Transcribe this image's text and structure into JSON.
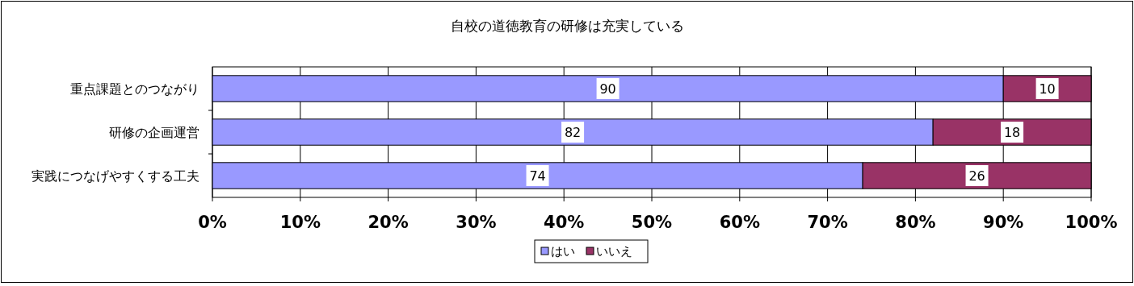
{
  "chart_data": {
    "type": "bar",
    "orientation": "horizontal",
    "stacked": true,
    "title": "自校の道徳教育の研修は充実している",
    "categories": [
      "重点課題とのつながり",
      "研修の企画運営",
      "実践につなげやすくする工夫"
    ],
    "series": [
      {
        "name": "はい",
        "color": "#9999ff",
        "values": [
          90,
          82,
          74
        ]
      },
      {
        "name": "いいえ",
        "color": "#993366",
        "values": [
          10,
          18,
          26
        ]
      }
    ],
    "xlim": [
      0,
      100
    ],
    "xticks": [
      {
        "value": 0,
        "label": "0%"
      },
      {
        "value": 10,
        "label": "10%"
      },
      {
        "value": 20,
        "label": "20%"
      },
      {
        "value": 30,
        "label": "30%"
      },
      {
        "value": 40,
        "label": "40%"
      },
      {
        "value": 50,
        "label": "50%"
      },
      {
        "value": 60,
        "label": "60%"
      },
      {
        "value": 70,
        "label": "70%"
      },
      {
        "value": 80,
        "label": "80%"
      },
      {
        "value": 90,
        "label": "90%"
      },
      {
        "value": 100,
        "label": "100%"
      }
    ],
    "grid": "x",
    "legend": "bottom",
    "data_labels": true
  }
}
